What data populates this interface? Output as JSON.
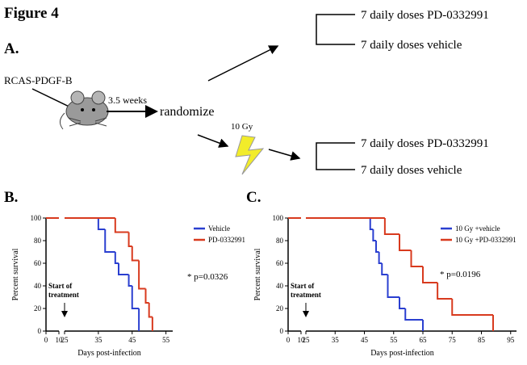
{
  "figure": {
    "title": "Figure 4",
    "panel_a": "A.",
    "diagram": {
      "injection": "RCAS-PDGF-B",
      "wait": "3.5 weeks",
      "randomize": "randomize",
      "radiation": "10 Gy",
      "arm_top_1": "7 daily doses PD-0332991",
      "arm_top_2": "7 daily doses vehicle",
      "arm_bottom_1": "7 daily doses PD-0332991",
      "arm_bottom_2": "7 daily doses vehicle"
    }
  },
  "chart_data": [
    {
      "type": "survival",
      "label": "B.",
      "xlabel": "Days post-infection",
      "ylabel": "Percent survival",
      "xlim": [
        0,
        57
      ],
      "x_break": [
        10,
        25
      ],
      "xticks": [
        0,
        10,
        25,
        35,
        45,
        55
      ],
      "ylim": [
        0,
        100
      ],
      "yticks": [
        0,
        20,
        40,
        60,
        80,
        100
      ],
      "start_label": [
        "Start of",
        "treatment"
      ],
      "p_value": "* p=0.0326",
      "series": [
        {
          "name": "Vehicle",
          "color": "#2a3fd0",
          "x": [
            0,
            35,
            37,
            40,
            41,
            44,
            45,
            47
          ],
          "values": [
            100,
            90,
            70,
            60,
            50,
            40,
            20,
            0
          ]
        },
        {
          "name": "PD-0332991",
          "color": "#d83a1e",
          "x": [
            0,
            40,
            44,
            45,
            47,
            49,
            50,
            51
          ],
          "values": [
            100,
            87.5,
            75,
            62.5,
            37.5,
            25,
            12.5,
            0
          ]
        }
      ]
    },
    {
      "type": "survival",
      "label": "C.",
      "xlabel": "Days post-infection",
      "ylabel": "Percent survival",
      "xlim": [
        0,
        97
      ],
      "x_break": [
        10,
        25
      ],
      "xticks": [
        0,
        10,
        25,
        35,
        45,
        55,
        65,
        75,
        85,
        95
      ],
      "ylim": [
        0,
        100
      ],
      "yticks": [
        0,
        20,
        40,
        60,
        80,
        100
      ],
      "start_label": [
        "Start of",
        "treatment"
      ],
      "p_value": "* p=0.0196",
      "series": [
        {
          "name": "10 Gy +vehicle",
          "color": "#2a3fd0",
          "x": [
            0,
            47,
            48,
            49,
            50,
            51,
            53,
            57,
            59,
            65
          ],
          "values": [
            100,
            90,
            80,
            70,
            60,
            50,
            30,
            20,
            10,
            0
          ]
        },
        {
          "name": "10 Gy +PD-0332991",
          "color": "#d83a1e",
          "x": [
            0,
            52,
            57,
            61,
            65,
            70,
            75,
            89
          ],
          "values": [
            100,
            85.7,
            71.4,
            57.1,
            42.9,
            28.6,
            14.3,
            0
          ]
        }
      ]
    }
  ]
}
